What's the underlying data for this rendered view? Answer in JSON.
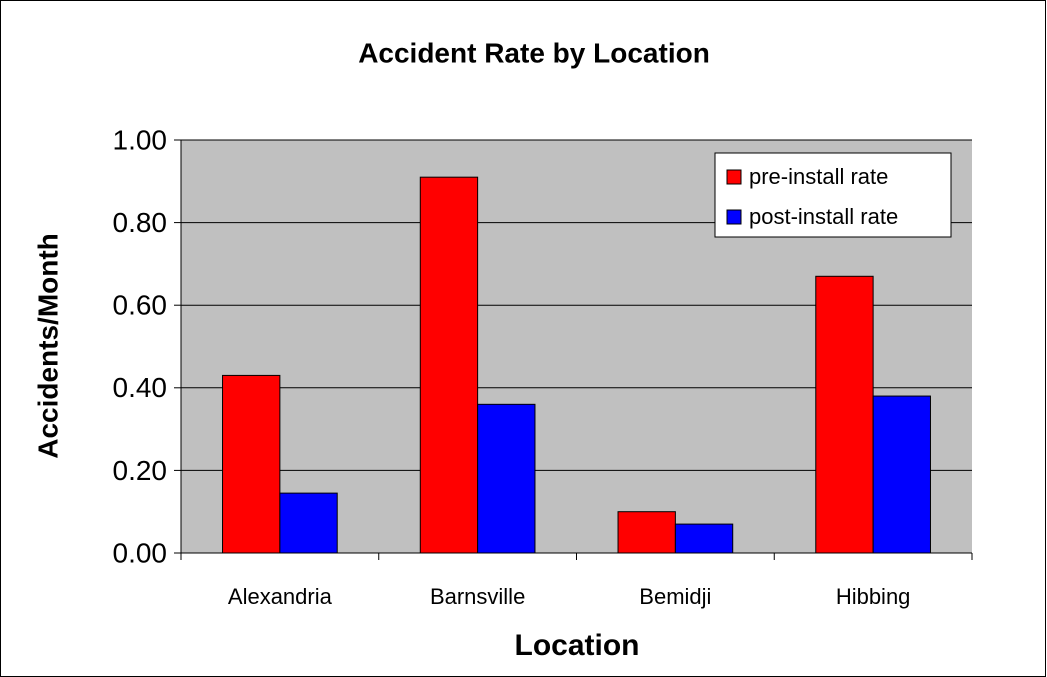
{
  "chart_data": {
    "type": "bar",
    "title": "Accident Rate by Location",
    "x_label": "Location",
    "y_label": "Accidents/Month",
    "categories": [
      "Alexandria",
      "Barnsville",
      "Bemidji",
      "Hibbing"
    ],
    "series": [
      {
        "name": "pre-install rate",
        "color": "#ff0000",
        "values": [
          0.43,
          0.91,
          0.1,
          0.67
        ]
      },
      {
        "name": "post-install rate",
        "color": "#0000ff",
        "values": [
          0.145,
          0.36,
          0.07,
          0.38
        ]
      }
    ],
    "ylim": [
      0,
      1
    ],
    "yticks": [
      {
        "value": 0,
        "label": "0.00"
      },
      {
        "value": 0.2,
        "label": "0.20"
      },
      {
        "value": 0.4,
        "label": "0.40"
      },
      {
        "value": 0.6,
        "label": "0.60"
      },
      {
        "value": 0.8,
        "label": "0.80"
      },
      {
        "value": 1,
        "label": "1.00"
      }
    ],
    "grid": true,
    "legend": "upper right"
  }
}
